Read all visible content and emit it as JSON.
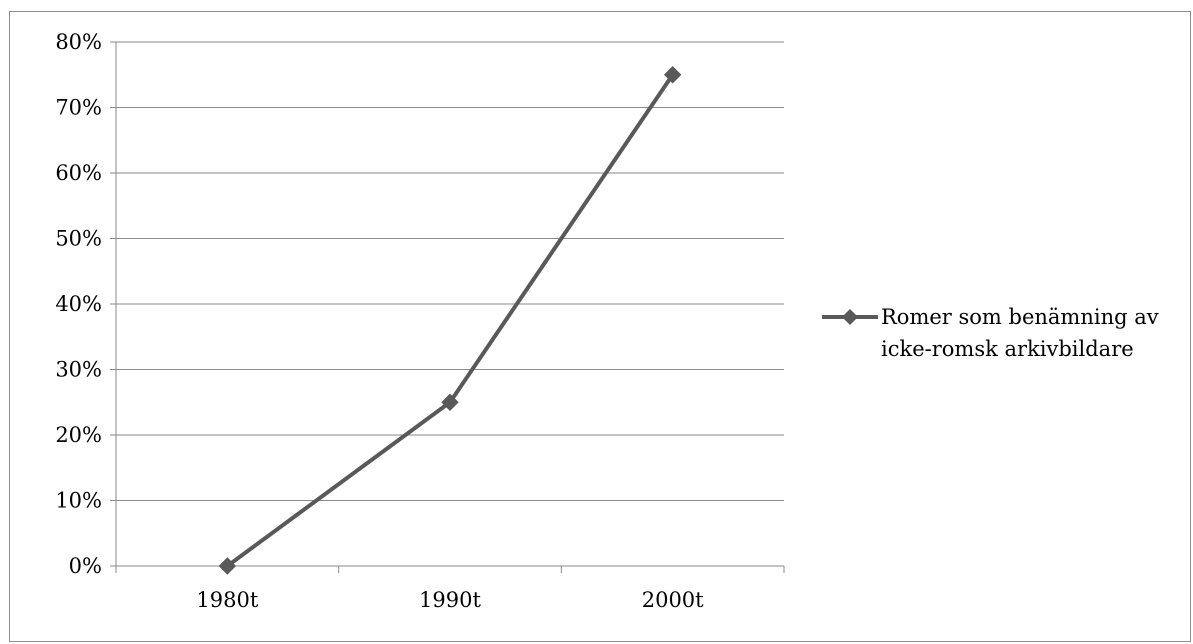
{
  "chart_data": {
    "type": "line",
    "categories": [
      "1980t",
      "1990t",
      "2000t"
    ],
    "series": [
      {
        "name": "Romer som benämning av icke-romsk arkivbildare",
        "values": [
          0,
          25,
          75
        ],
        "color": "#595959",
        "marker": "diamond"
      }
    ],
    "y_ticks": [
      "0%",
      "10%",
      "20%",
      "30%",
      "40%",
      "50%",
      "60%",
      "70%",
      "80%"
    ],
    "ylim": [
      0,
      80
    ],
    "y_unit": "%",
    "grid": true,
    "legend_position": "right",
    "legend": {
      "line1": "Romer som benämning av",
      "line2": "icke-romsk arkivbildare"
    }
  }
}
